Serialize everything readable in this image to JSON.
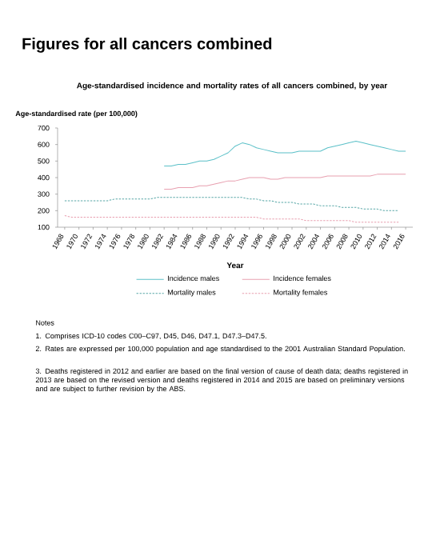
{
  "chart_data": {
    "type": "line",
    "title": "Figures for all cancers combined",
    "subtitle": "Age-standardised incidence and mortality rates of all cancers combined, by year",
    "xlabel": "Year",
    "ylabel": "Age-standardised rate (per 100,000)",
    "xlim": [
      1967,
      2017
    ],
    "xticks": [
      1968,
      1970,
      1972,
      1974,
      1976,
      1978,
      1980,
      1982,
      1984,
      1986,
      1988,
      1990,
      1992,
      1994,
      1996,
      1998,
      2000,
      2002,
      2004,
      2006,
      2008,
      2010,
      2012,
      2014,
      2016
    ],
    "ylim": [
      100,
      700
    ],
    "yticks": [
      100,
      200,
      300,
      400,
      500,
      600,
      700
    ],
    "legend": "bottom",
    "marker": "none",
    "series": [
      {
        "name": "Incidence males",
        "color": "#5bc0c8",
        "line_style": "solid",
        "x": [
          1982,
          1983,
          1984,
          1985,
          1986,
          1987,
          1988,
          1989,
          1990,
          1991,
          1992,
          1993,
          1994,
          1995,
          1996,
          1997,
          1998,
          1999,
          2000,
          2001,
          2002,
          2003,
          2004,
          2005,
          2006,
          2007,
          2008,
          2009,
          2010,
          2011,
          2012,
          2013,
          2014,
          2015,
          2016
        ],
        "values": [
          470,
          470,
          480,
          480,
          490,
          500,
          500,
          510,
          530,
          550,
          590,
          610,
          600,
          580,
          570,
          560,
          550,
          550,
          550,
          560,
          560,
          560,
          560,
          580,
          590,
          600,
          610,
          620,
          610,
          600,
          590,
          580,
          570,
          560,
          560
        ]
      },
      {
        "name": "Incidence females",
        "color": "#e8a0b0",
        "line_style": "solid",
        "x": [
          1982,
          1983,
          1984,
          1985,
          1986,
          1987,
          1988,
          1989,
          1990,
          1991,
          1992,
          1993,
          1994,
          1995,
          1996,
          1997,
          1998,
          1999,
          2000,
          2001,
          2002,
          2003,
          2004,
          2005,
          2006,
          2007,
          2008,
          2009,
          2010,
          2011,
          2012,
          2013,
          2014,
          2015,
          2016
        ],
        "values": [
          330,
          330,
          340,
          340,
          340,
          350,
          350,
          360,
          370,
          380,
          380,
          390,
          400,
          400,
          400,
          390,
          390,
          400,
          400,
          400,
          400,
          400,
          400,
          410,
          410,
          410,
          410,
          410,
          410,
          410,
          420,
          420,
          420,
          420,
          420
        ]
      },
      {
        "name": "Mortality males",
        "color": "#5aa8a8",
        "line_style": "dashed",
        "x": [
          1968,
          1969,
          1970,
          1971,
          1972,
          1973,
          1974,
          1975,
          1976,
          1977,
          1978,
          1979,
          1980,
          1981,
          1982,
          1983,
          1984,
          1985,
          1986,
          1987,
          1988,
          1989,
          1990,
          1991,
          1992,
          1993,
          1994,
          1995,
          1996,
          1997,
          1998,
          1999,
          2000,
          2001,
          2002,
          2003,
          2004,
          2005,
          2006,
          2007,
          2008,
          2009,
          2010,
          2011,
          2012,
          2013,
          2014,
          2015
        ],
        "values": [
          260,
          260,
          260,
          260,
          260,
          260,
          260,
          270,
          270,
          270,
          270,
          270,
          270,
          280,
          280,
          280,
          280,
          280,
          280,
          280,
          280,
          280,
          280,
          280,
          280,
          280,
          270,
          270,
          260,
          260,
          250,
          250,
          250,
          240,
          240,
          240,
          230,
          230,
          230,
          220,
          220,
          220,
          210,
          210,
          210,
          200,
          200,
          200
        ]
      },
      {
        "name": "Mortality females",
        "color": "#e8a0b0",
        "line_style": "dashed",
        "x": [
          1968,
          1969,
          1970,
          1971,
          1972,
          1973,
          1974,
          1975,
          1976,
          1977,
          1978,
          1979,
          1980,
          1981,
          1982,
          1983,
          1984,
          1985,
          1986,
          1987,
          1988,
          1989,
          1990,
          1991,
          1992,
          1993,
          1994,
          1995,
          1996,
          1997,
          1998,
          1999,
          2000,
          2001,
          2002,
          2003,
          2004,
          2005,
          2006,
          2007,
          2008,
          2009,
          2010,
          2011,
          2012,
          2013,
          2014,
          2015
        ],
        "values": [
          170,
          160,
          160,
          160,
          160,
          160,
          160,
          160,
          160,
          160,
          160,
          160,
          160,
          160,
          160,
          160,
          160,
          160,
          160,
          160,
          160,
          160,
          160,
          160,
          160,
          160,
          160,
          160,
          150,
          150,
          150,
          150,
          150,
          150,
          140,
          140,
          140,
          140,
          140,
          140,
          140,
          130,
          130,
          130,
          130,
          130,
          130,
          130
        ]
      }
    ],
    "annotations": [
      "Notes",
      "1. Comprises ICD-10 codes C00–C97, D45, D46, D47.1, D47.3–D47.5.",
      "2. Rates are expressed per 100,000 population and age standardised to the 2001 Australian Standard Population.",
      "3. Deaths registered in 2012 and earlier are based on the final version of cause of death data; deaths registered in 2013 are based on the revised version and deaths registered in 2014 and 2015 are based on preliminary versions and are subject to further revision by the ABS."
    ]
  }
}
